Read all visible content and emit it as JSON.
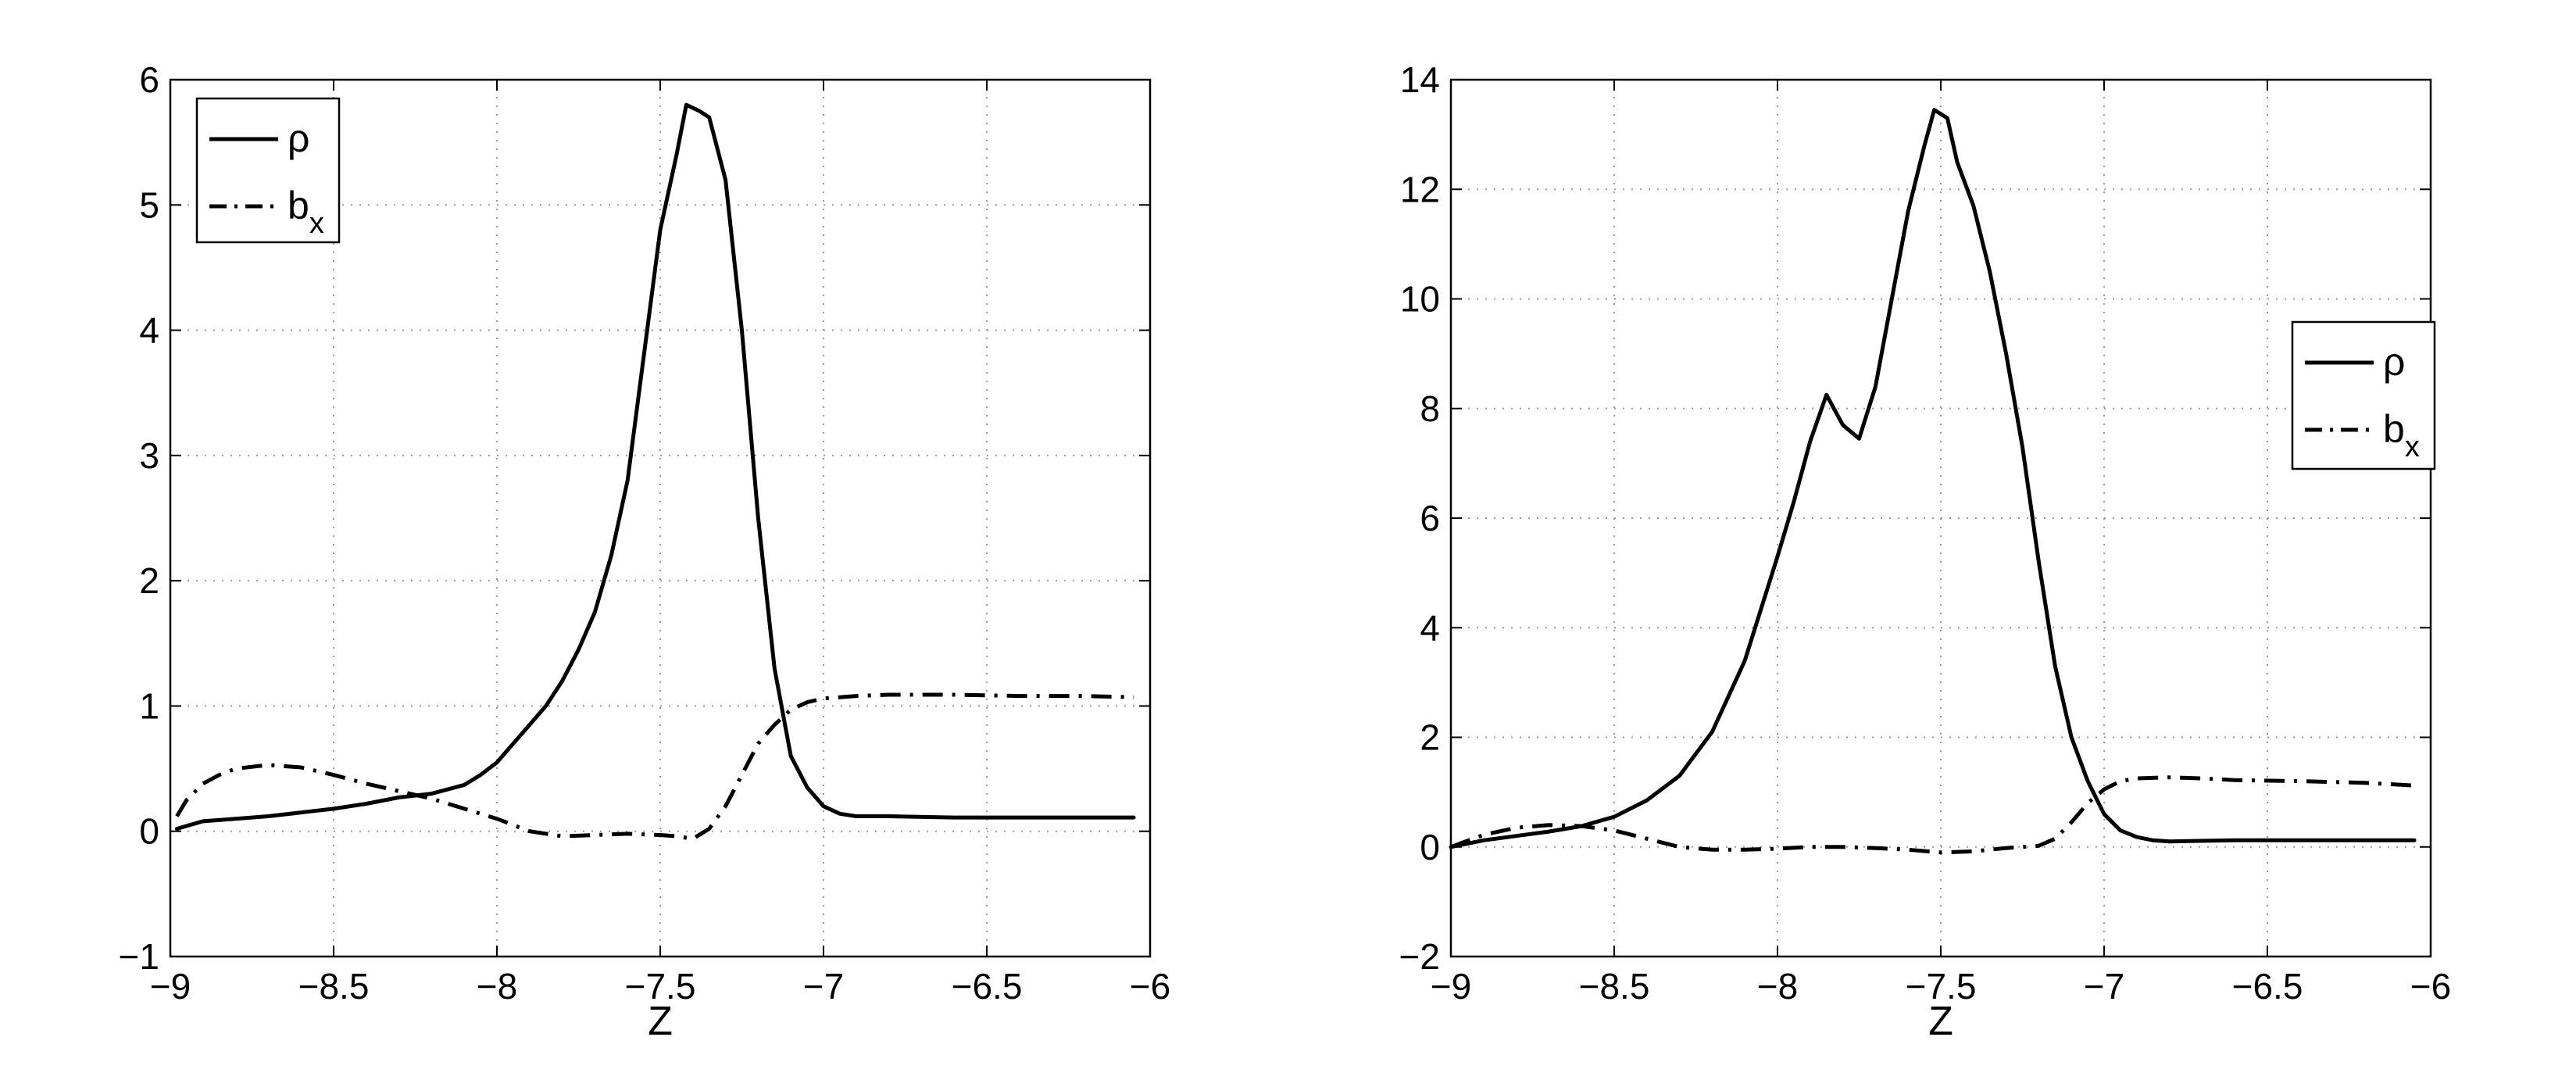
{
  "chart_data": [
    {
      "type": "line",
      "title": "",
      "xlabel": "Z",
      "ylabel": "",
      "xlim": [
        -9,
        -6
      ],
      "ylim": [
        -1,
        6
      ],
      "xticks": [
        -9,
        -8.5,
        -8,
        -7.5,
        -7,
        -6.5,
        -6
      ],
      "xtick_labels": [
        "−9",
        "−8.5",
        "−8",
        "−7.5",
        "−7",
        "−6.5",
        "−6"
      ],
      "yticks": [
        -1,
        0,
        1,
        2,
        3,
        4,
        5,
        6
      ],
      "ytick_labels": [
        "−1",
        "0",
        "1",
        "2",
        "3",
        "4",
        "5",
        "6"
      ],
      "grid": true,
      "legend_position": "top-left",
      "series": [
        {
          "name": "ρ",
          "style": "solid",
          "x": [
            -8.98,
            -8.9,
            -8.8,
            -8.7,
            -8.6,
            -8.5,
            -8.4,
            -8.3,
            -8.2,
            -8.1,
            -8.05,
            -8.0,
            -7.95,
            -7.9,
            -7.85,
            -7.8,
            -7.75,
            -7.7,
            -7.65,
            -7.6,
            -7.55,
            -7.5,
            -7.45,
            -7.42,
            -7.38,
            -7.35,
            -7.3,
            -7.25,
            -7.2,
            -7.15,
            -7.1,
            -7.05,
            -7.0,
            -6.95,
            -6.9,
            -6.8,
            -6.6,
            -6.4,
            -6.2,
            -6.05
          ],
          "y": [
            0.02,
            0.08,
            0.1,
            0.12,
            0.15,
            0.18,
            0.22,
            0.27,
            0.3,
            0.37,
            0.45,
            0.55,
            0.7,
            0.85,
            1.0,
            1.2,
            1.45,
            1.75,
            2.2,
            2.8,
            3.8,
            4.8,
            5.4,
            5.8,
            5.75,
            5.7,
            5.2,
            4.0,
            2.5,
            1.3,
            0.6,
            0.35,
            0.2,
            0.14,
            0.12,
            0.12,
            0.11,
            0.11,
            0.11,
            0.11
          ]
        },
        {
          "name": "b",
          "subscript": "x",
          "style": "dashdot",
          "x": [
            -8.98,
            -8.95,
            -8.9,
            -8.85,
            -8.8,
            -8.7,
            -8.6,
            -8.5,
            -8.4,
            -8.3,
            -8.2,
            -8.1,
            -8.0,
            -7.9,
            -7.8,
            -7.7,
            -7.6,
            -7.5,
            -7.45,
            -7.4,
            -7.35,
            -7.3,
            -7.25,
            -7.2,
            -7.15,
            -7.1,
            -7.05,
            -7.0,
            -6.9,
            -6.8,
            -6.6,
            -6.4,
            -6.2,
            -6.05
          ],
          "y": [
            0.12,
            0.25,
            0.38,
            0.45,
            0.5,
            0.53,
            0.51,
            0.45,
            0.38,
            0.32,
            0.26,
            0.18,
            0.1,
            0.0,
            -0.04,
            -0.03,
            -0.02,
            -0.03,
            -0.04,
            -0.06,
            0.02,
            0.2,
            0.45,
            0.7,
            0.85,
            0.97,
            1.03,
            1.06,
            1.08,
            1.09,
            1.09,
            1.08,
            1.08,
            1.07
          ]
        }
      ]
    },
    {
      "type": "line",
      "title": "",
      "xlabel": "Z",
      "ylabel": "",
      "xlim": [
        -9,
        -6
      ],
      "ylim": [
        -2,
        14
      ],
      "xticks": [
        -9,
        -8.5,
        -8,
        -7.5,
        -7,
        -6.5,
        -6
      ],
      "xtick_labels": [
        "−9",
        "−8.5",
        "−8",
        "−7.5",
        "−7",
        "−6.5",
        "−6"
      ],
      "yticks": [
        -2,
        0,
        2,
        4,
        6,
        8,
        10,
        12,
        14
      ],
      "ytick_labels": [
        "−2",
        "0",
        "2",
        "4",
        "6",
        "8",
        "10",
        "12",
        "14"
      ],
      "grid": true,
      "legend_position": "right",
      "series": [
        {
          "name": "ρ",
          "style": "solid",
          "x": [
            -9.0,
            -8.9,
            -8.8,
            -8.7,
            -8.6,
            -8.5,
            -8.4,
            -8.3,
            -8.2,
            -8.1,
            -8.0,
            -7.95,
            -7.9,
            -7.85,
            -7.8,
            -7.75,
            -7.7,
            -7.65,
            -7.6,
            -7.55,
            -7.52,
            -7.48,
            -7.45,
            -7.4,
            -7.35,
            -7.3,
            -7.25,
            -7.2,
            -7.15,
            -7.1,
            -7.05,
            -7.0,
            -6.95,
            -6.9,
            -6.85,
            -6.8,
            -6.6,
            -6.4,
            -6.2,
            -6.05
          ],
          "y": [
            0.0,
            0.12,
            0.2,
            0.28,
            0.38,
            0.55,
            0.85,
            1.3,
            2.1,
            3.4,
            5.3,
            6.3,
            7.4,
            8.25,
            7.7,
            7.45,
            8.4,
            10.0,
            11.6,
            12.8,
            13.45,
            13.3,
            12.5,
            11.7,
            10.5,
            9.0,
            7.3,
            5.2,
            3.3,
            2.0,
            1.2,
            0.6,
            0.3,
            0.18,
            0.12,
            0.1,
            0.12,
            0.12,
            0.12,
            0.12
          ]
        },
        {
          "name": "b",
          "subscript": "x",
          "style": "dashdot",
          "x": [
            -9.0,
            -8.9,
            -8.8,
            -8.7,
            -8.6,
            -8.5,
            -8.4,
            -8.3,
            -8.2,
            -8.1,
            -8.0,
            -7.9,
            -7.8,
            -7.7,
            -7.6,
            -7.5,
            -7.4,
            -7.3,
            -7.2,
            -7.15,
            -7.1,
            -7.05,
            -7.0,
            -6.95,
            -6.9,
            -6.8,
            -6.7,
            -6.6,
            -6.4,
            -6.2,
            -6.05
          ],
          "y": [
            0.0,
            0.22,
            0.35,
            0.4,
            0.38,
            0.3,
            0.15,
            0.0,
            -0.05,
            -0.05,
            -0.03,
            0.0,
            0.0,
            -0.02,
            -0.05,
            -0.1,
            -0.08,
            -0.02,
            0.02,
            0.15,
            0.45,
            0.8,
            1.05,
            1.2,
            1.25,
            1.27,
            1.25,
            1.22,
            1.2,
            1.17,
            1.12
          ]
        }
      ]
    }
  ]
}
